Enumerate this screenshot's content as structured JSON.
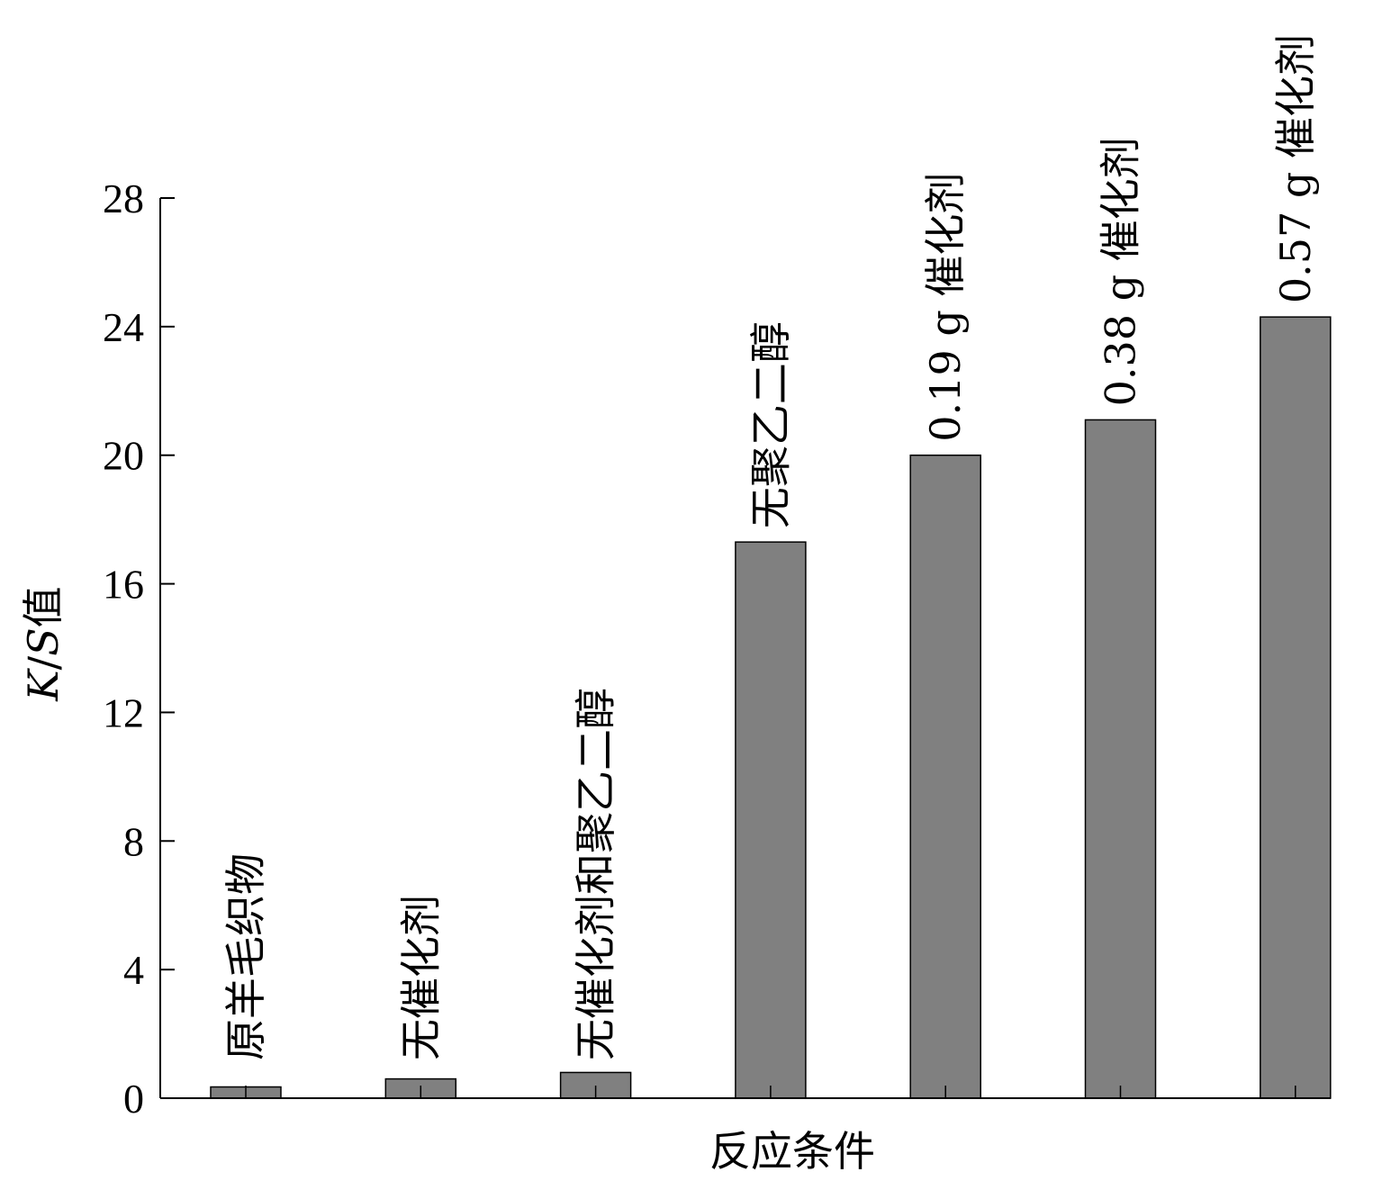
{
  "chart_data": {
    "type": "bar",
    "xlabel": "反应条件",
    "ylabel_parts": [
      "K",
      "/",
      "S",
      "值"
    ],
    "ylim": [
      0,
      28
    ],
    "yticks": [
      0,
      4,
      8,
      12,
      16,
      20,
      24,
      28
    ],
    "grid": false,
    "legend": "none",
    "bar_color": "#808080",
    "categories": [
      "原羊毛织物",
      "无催化剂",
      "无催化剂和聚乙二醇",
      "无聚乙二醇",
      "0.19 g 催化剂",
      "0.38 g 催化剂",
      "0.57 g 催化剂"
    ],
    "values": [
      0.35,
      0.6,
      0.8,
      17.3,
      20.0,
      21.1,
      24.3
    ]
  }
}
